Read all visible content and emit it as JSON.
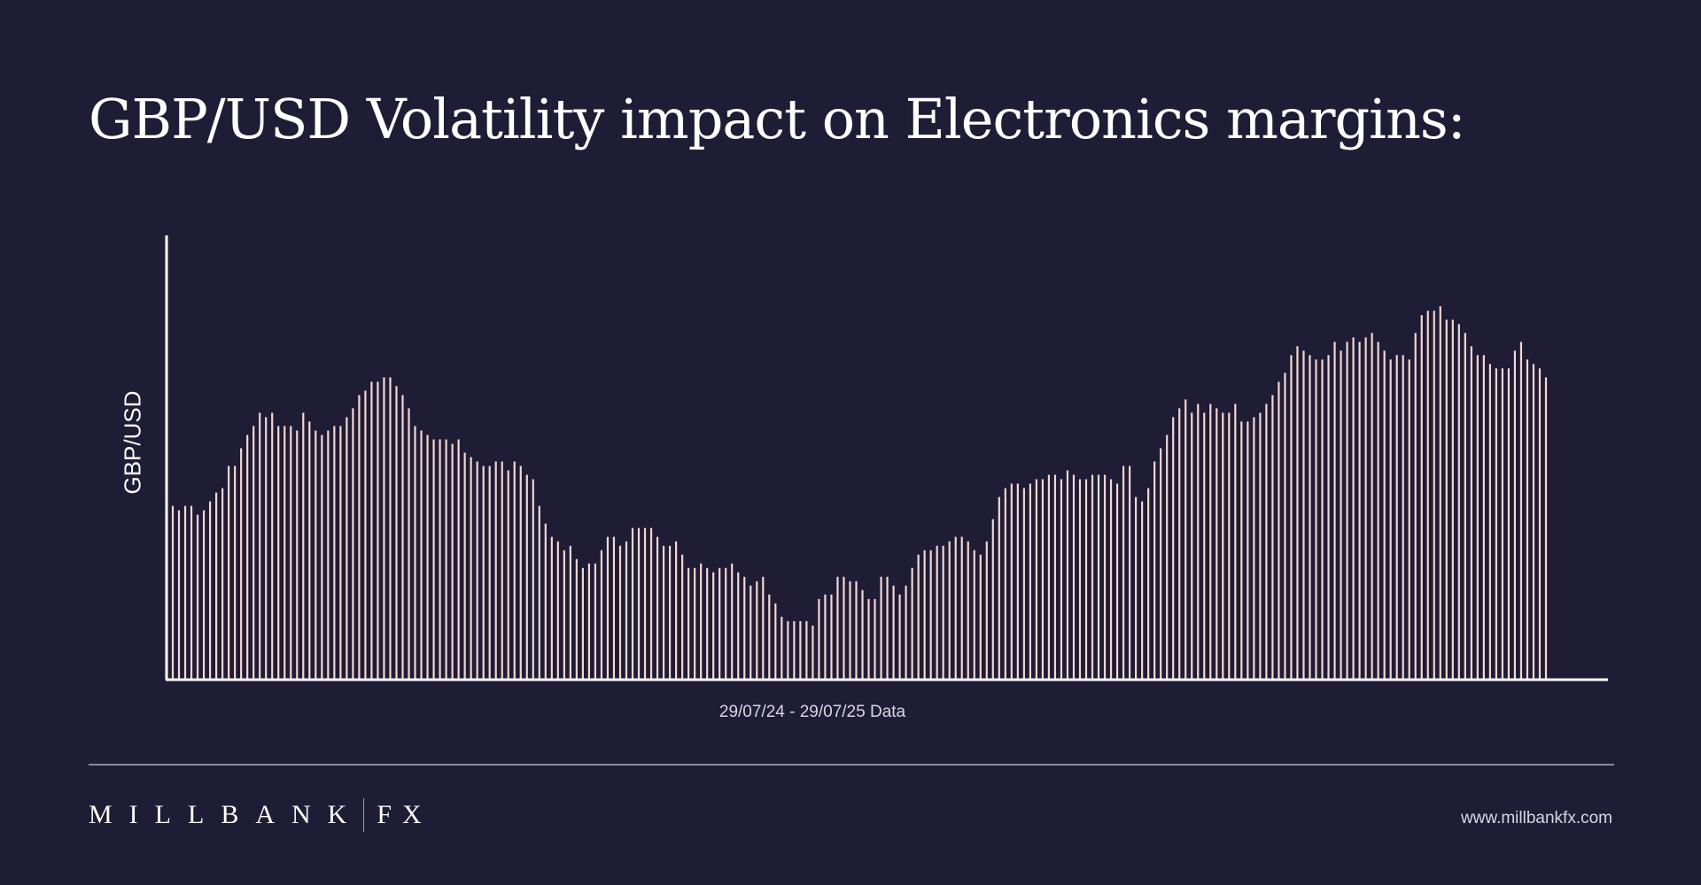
{
  "title": "GBP/USD Volatility impact on Electronics margins:",
  "chart_data": {
    "type": "bar",
    "ylabel": "GBP/USD",
    "xlabel": "29/07/24 - 29/07/25 Data",
    "bar_color": "#f4d7d0",
    "axis_color": "#ffffff",
    "ylim": [
      0,
      1
    ],
    "values": [
      0.39,
      0.38,
      0.39,
      0.39,
      0.37,
      0.38,
      0.4,
      0.42,
      0.43,
      0.48,
      0.48,
      0.52,
      0.55,
      0.57,
      0.6,
      0.59,
      0.6,
      0.57,
      0.57,
      0.57,
      0.56,
      0.6,
      0.58,
      0.56,
      0.55,
      0.56,
      0.57,
      0.57,
      0.59,
      0.61,
      0.64,
      0.65,
      0.67,
      0.67,
      0.68,
      0.68,
      0.66,
      0.64,
      0.61,
      0.57,
      0.56,
      0.55,
      0.54,
      0.54,
      0.54,
      0.53,
      0.54,
      0.51,
      0.5,
      0.49,
      0.48,
      0.48,
      0.49,
      0.49,
      0.47,
      0.49,
      0.48,
      0.46,
      0.45,
      0.39,
      0.35,
      0.32,
      0.31,
      0.29,
      0.3,
      0.27,
      0.25,
      0.26,
      0.26,
      0.29,
      0.32,
      0.32,
      0.3,
      0.31,
      0.34,
      0.34,
      0.34,
      0.34,
      0.32,
      0.3,
      0.3,
      0.31,
      0.28,
      0.25,
      0.25,
      0.26,
      0.25,
      0.24,
      0.25,
      0.25,
      0.26,
      0.24,
      0.23,
      0.21,
      0.22,
      0.23,
      0.19,
      0.17,
      0.14,
      0.13,
      0.13,
      0.13,
      0.13,
      0.12,
      0.18,
      0.19,
      0.19,
      0.23,
      0.23,
      0.22,
      0.22,
      0.2,
      0.18,
      0.18,
      0.23,
      0.23,
      0.21,
      0.19,
      0.21,
      0.25,
      0.28,
      0.29,
      0.29,
      0.3,
      0.3,
      0.31,
      0.32,
      0.32,
      0.31,
      0.29,
      0.28,
      0.31,
      0.36,
      0.41,
      0.43,
      0.44,
      0.44,
      0.43,
      0.44,
      0.45,
      0.45,
      0.46,
      0.46,
      0.45,
      0.47,
      0.46,
      0.45,
      0.45,
      0.46,
      0.46,
      0.46,
      0.45,
      0.44,
      0.48,
      0.48,
      0.41,
      0.4,
      0.43,
      0.49,
      0.52,
      0.55,
      0.59,
      0.61,
      0.63,
      0.6,
      0.62,
      0.6,
      0.62,
      0.61,
      0.6,
      0.6,
      0.62,
      0.58,
      0.58,
      0.59,
      0.6,
      0.62,
      0.64,
      0.67,
      0.69,
      0.73,
      0.75,
      0.74,
      0.73,
      0.72,
      0.72,
      0.73,
      0.76,
      0.74,
      0.76,
      0.77,
      0.76,
      0.77,
      0.78,
      0.76,
      0.74,
      0.72,
      0.73,
      0.73,
      0.72,
      0.78,
      0.82,
      0.83,
      0.83,
      0.84,
      0.81,
      0.81,
      0.8,
      0.78,
      0.75,
      0.73,
      0.73,
      0.71,
      0.7,
      0.7,
      0.7,
      0.74,
      0.76,
      0.72,
      0.71,
      0.7,
      0.68
    ]
  },
  "footer": {
    "brand_left": "MILLBANK",
    "brand_right": "FX",
    "website": "www.millbankfx.com"
  }
}
